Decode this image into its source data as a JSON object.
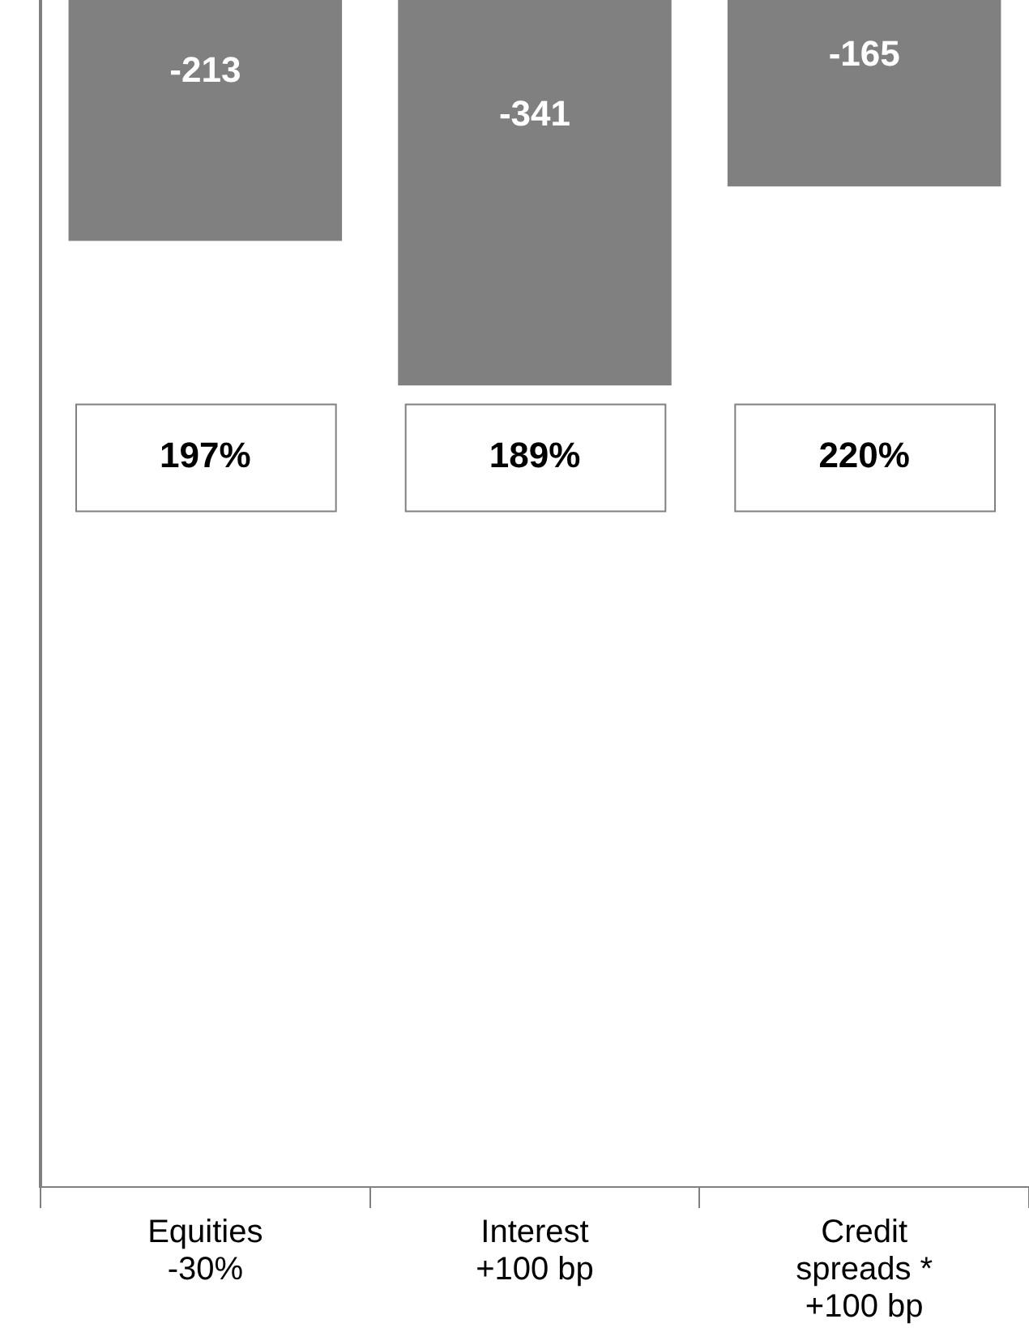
{
  "chart_data": {
    "type": "bar",
    "categories": [
      "Equities\n-30%",
      "Interest\n+100 bp",
      "Credit\nspreads *\n+100 bp"
    ],
    "values": [
      -213,
      -341,
      -165
    ],
    "color": "#808080",
    "ylim": [
      -1050,
      0
    ],
    "data_labels": true,
    "legend": false,
    "grid": false,
    "annotations": [
      "197%",
      "189%",
      "220%"
    ]
  }
}
